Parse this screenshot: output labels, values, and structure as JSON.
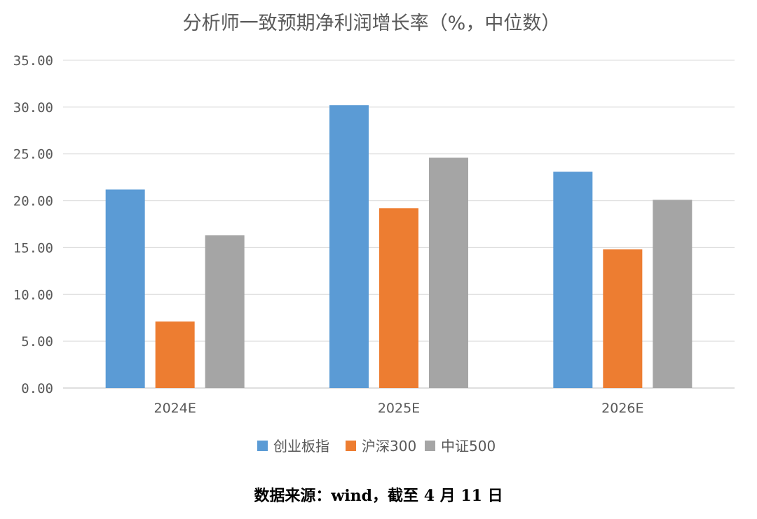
{
  "chart_data": {
    "type": "bar",
    "title": "分析师一致预期净利润增长率（%，中位数）",
    "categories": [
      "2024E",
      "2025E",
      "2026E"
    ],
    "series": [
      {
        "name": "创业板指",
        "color": "#5B9BD5",
        "values": [
          21.2,
          30.2,
          23.1
        ]
      },
      {
        "name": "沪深300",
        "color": "#ED7D31",
        "values": [
          7.1,
          19.2,
          14.8
        ]
      },
      {
        "name": "中证500",
        "color": "#A5A5A5",
        "values": [
          16.3,
          24.6,
          20.1
        ]
      }
    ],
    "ylim": [
      0,
      35
    ],
    "yticks": [
      "0.00",
      "5.00",
      "10.00",
      "15.00",
      "20.00",
      "25.00",
      "30.00",
      "35.00"
    ],
    "xlabel": "",
    "ylabel": "",
    "grid": true,
    "legend": "bottom"
  },
  "source_note": "数据来源：wind，截至 4 月 11 日"
}
